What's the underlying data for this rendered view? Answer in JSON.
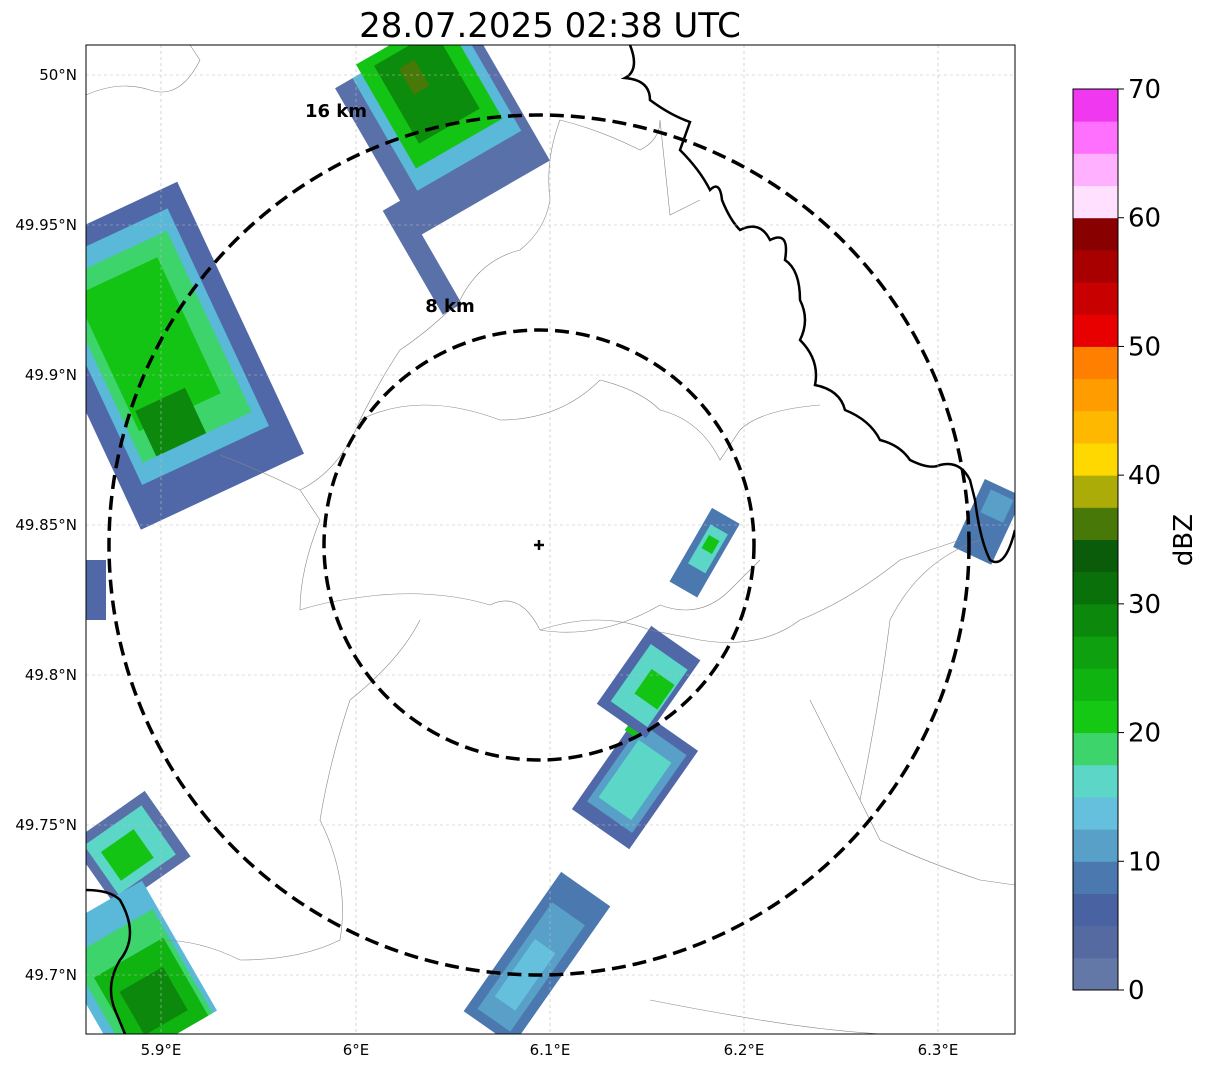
{
  "title": "28.07.2025 02:38 UTC",
  "map": {
    "lon_ticks": [
      "5.9°E",
      "6°E",
      "6.1°E",
      "6.2°E",
      "6.3°E"
    ],
    "lat_ticks": [
      "49.7°N",
      "49.75°N",
      "49.8°N",
      "49.85°N",
      "49.9°N",
      "49.95°N",
      "50°N"
    ],
    "lon_range": [
      5.86,
      6.34
    ],
    "lat_range": [
      49.68,
      50.01
    ],
    "radar_site": {
      "lon": 6.094,
      "lat": 49.843
    },
    "range_rings": [
      {
        "label": "8 km",
        "radius_km": 8
      },
      {
        "label": "16 km",
        "radius_km": 16
      }
    ],
    "grid": true
  },
  "colorbar": {
    "label": "dBZ",
    "ticks": [
      "0",
      "10",
      "20",
      "30",
      "40",
      "50",
      "60",
      "70"
    ],
    "range": [
      0,
      70
    ],
    "colors": [
      "#6478a8",
      "#566aa2",
      "#4862a2",
      "#4c78b0",
      "#58a0c8",
      "#64c0dc",
      "#5cd6c6",
      "#3ed46c",
      "#14c814",
      "#10b410",
      "#0ea00e",
      "#0c880c",
      "#0a700a",
      "#0a5c0a",
      "#487808",
      "#acac08",
      "#ffd800",
      "#ffb800",
      "#ff9c00",
      "#ff8000",
      "#e80000",
      "#c80000",
      "#a80000",
      "#880000",
      "#ffe0ff",
      "#ffb0ff",
      "#ff70ff",
      "#f038f0"
    ]
  }
}
